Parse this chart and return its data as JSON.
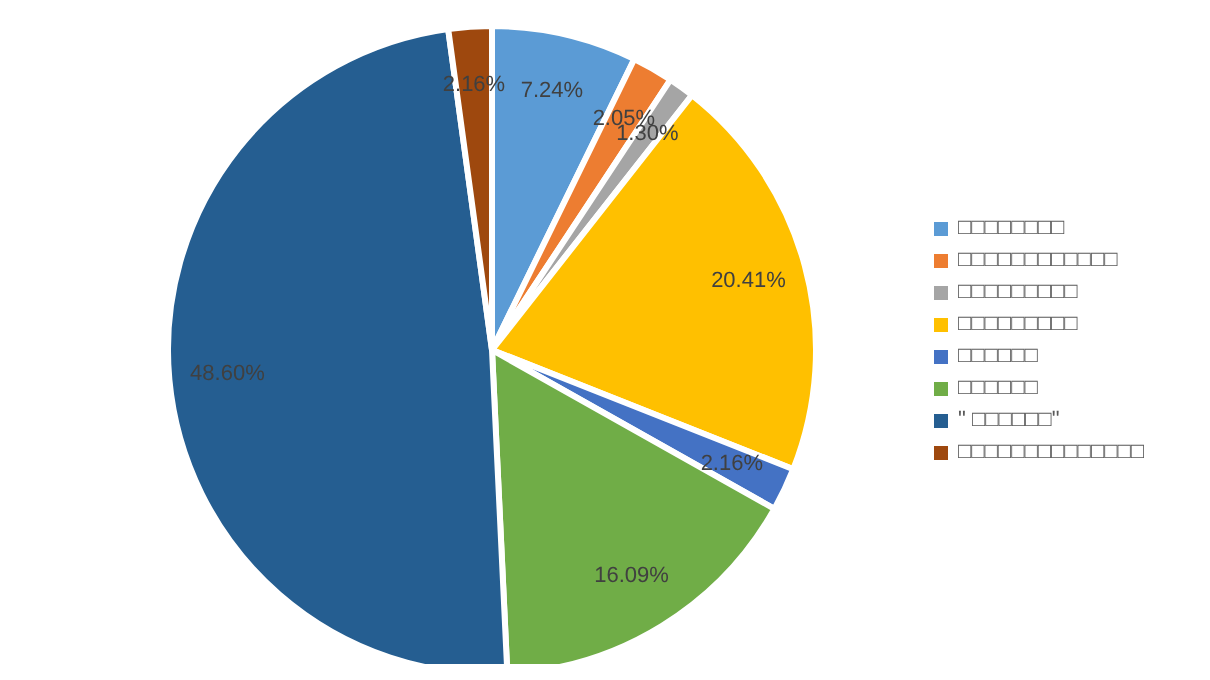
{
  "chart_data": {
    "type": "pie",
    "categories": [
      "□□□□□□□□",
      "□□□□□□□□□□□□",
      "□□□□□□□□□",
      "□□□□□□□□□",
      "□□□□□□",
      "□□□□□□",
      "\" □□□□□□\"",
      "□□□□□□□□□□□□□□"
    ],
    "values": [
      7.24,
      2.05,
      1.3,
      20.41,
      2.16,
      16.09,
      48.6,
      2.16
    ],
    "value_labels": [
      "7.24%",
      "2.05%",
      "1.30%",
      "20.41%",
      "2.16%",
      "16.09%",
      "48.60%",
      "2.16%"
    ],
    "colors": [
      "#5b9bd5",
      "#ed7d31",
      "#a5a5a5",
      "#ffc000",
      "#4472c4",
      "#70ad47",
      "#255e91",
      "#9e480e"
    ],
    "legend": "right"
  }
}
